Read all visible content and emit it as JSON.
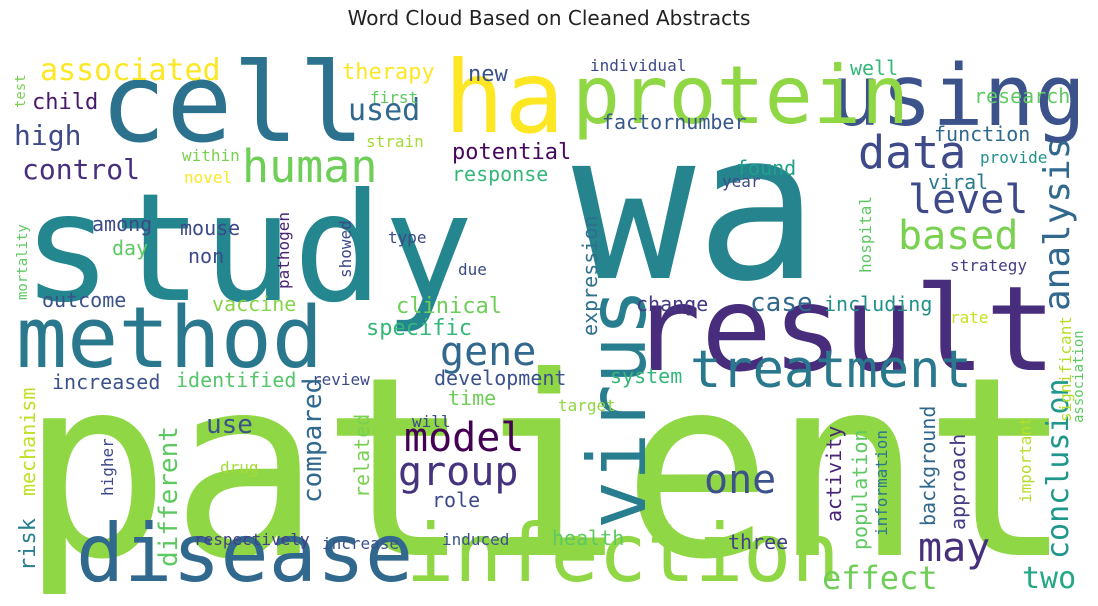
{
  "title": "Word Cloud Based on Cleaned Abstracts",
  "colors": {
    "background": "#ffffff",
    "palette": "viridis"
  },
  "words": [
    {
      "text": "patient",
      "color": "#8fd744"
    },
    {
      "text": "wa",
      "color": "#25848e"
    },
    {
      "text": "study",
      "color": "#24868e"
    },
    {
      "text": "result",
      "color": "#472d7b"
    },
    {
      "text": "cell",
      "color": "#2c728e"
    },
    {
      "text": "ha",
      "color": "#fde725"
    },
    {
      "text": "using",
      "color": "#3b528b"
    },
    {
      "text": "protein",
      "color": "#8fd744"
    },
    {
      "text": "method",
      "color": "#2a788e"
    },
    {
      "text": "infection",
      "color": "#8fd744"
    },
    {
      "text": "disease",
      "color": "#31688e"
    },
    {
      "text": "virus",
      "color": "#287d8e"
    },
    {
      "text": "treatment",
      "color": "#2a788e"
    },
    {
      "text": "human",
      "color": "#6ece58"
    },
    {
      "text": "data",
      "color": "#3e4a89"
    },
    {
      "text": "associated",
      "color": "#fde725"
    },
    {
      "text": "based",
      "color": "#7ad151"
    },
    {
      "text": "analysis",
      "color": "#31688e"
    },
    {
      "text": "level",
      "color": "#3e4989"
    },
    {
      "text": "model",
      "color": "#440154"
    },
    {
      "text": "group",
      "color": "#46337e"
    },
    {
      "text": "gene",
      "color": "#31688e"
    },
    {
      "text": "one",
      "color": "#3b528b"
    },
    {
      "text": "may",
      "color": "#46307e"
    },
    {
      "text": "conclusion",
      "color": "#1f988b"
    },
    {
      "text": "effect",
      "color": "#6ece58"
    },
    {
      "text": "two",
      "color": "#22a884"
    },
    {
      "text": "used",
      "color": "#31688e"
    },
    {
      "text": "control",
      "color": "#472f7d"
    },
    {
      "text": "high",
      "color": "#3e4a89"
    },
    {
      "text": "child",
      "color": "#48186a"
    },
    {
      "text": "new",
      "color": "#3b528b"
    },
    {
      "text": "therapy",
      "color": "#fde725"
    },
    {
      "text": "research",
      "color": "#5ec962"
    },
    {
      "text": "well",
      "color": "#35b779"
    },
    {
      "text": "function",
      "color": "#30698e"
    },
    {
      "text": "factornumber",
      "color": "#38588c"
    },
    {
      "text": "potential",
      "color": "#46085c"
    },
    {
      "text": "response",
      "color": "#35b779"
    },
    {
      "text": "found",
      "color": "#1f9e89"
    },
    {
      "text": "viral",
      "color": "#2a788e"
    },
    {
      "text": "case",
      "color": "#31688e"
    },
    {
      "text": "including",
      "color": "#21918c"
    },
    {
      "text": "change",
      "color": "#443983"
    },
    {
      "text": "clinical",
      "color": "#6ece58"
    },
    {
      "text": "specific",
      "color": "#35b779"
    },
    {
      "text": "vaccine",
      "color": "#86d549"
    },
    {
      "text": "outcome",
      "color": "#3b528b"
    },
    {
      "text": "mouse",
      "color": "#3e4989"
    },
    {
      "text": "among",
      "color": "#3e4989"
    },
    {
      "text": "day",
      "color": "#5ec962"
    },
    {
      "text": "non",
      "color": "#3e4989"
    },
    {
      "text": "increased",
      "color": "#3b528b"
    },
    {
      "text": "identified",
      "color": "#54c568"
    },
    {
      "text": "review",
      "color": "#3e4989"
    },
    {
      "text": "development",
      "color": "#3b528b"
    },
    {
      "text": "system",
      "color": "#35b779"
    },
    {
      "text": "time",
      "color": "#6ece58"
    },
    {
      "text": "expression",
      "color": "#2d708e"
    },
    {
      "text": "use",
      "color": "#3b528b"
    },
    {
      "text": "compared",
      "color": "#31688e"
    },
    {
      "text": "related",
      "color": "#7ad151"
    },
    {
      "text": "role",
      "color": "#3e4989"
    },
    {
      "text": "different",
      "color": "#5ec962"
    },
    {
      "text": "risk",
      "color": "#287d8e"
    },
    {
      "text": "mechanism",
      "color": "#c2df23"
    },
    {
      "text": "respectively",
      "color": "#424086"
    },
    {
      "text": "increase",
      "color": "#3b528b"
    },
    {
      "text": "induced",
      "color": "#3b528b"
    },
    {
      "text": "health",
      "color": "#5ec962"
    },
    {
      "text": "three",
      "color": "#424086"
    },
    {
      "text": "activity",
      "color": "#482576"
    },
    {
      "text": "population",
      "color": "#5ec962"
    },
    {
      "text": "background",
      "color": "#31688e"
    },
    {
      "text": "approach",
      "color": "#433e85"
    },
    {
      "text": "information",
      "color": "#2a788e"
    },
    {
      "text": "important",
      "color": "#b5de2b"
    },
    {
      "text": "significant",
      "color": "#b5de2b"
    },
    {
      "text": "association",
      "color": "#5ec962"
    },
    {
      "text": "rate",
      "color": "#c8e020"
    },
    {
      "text": "strategy",
      "color": "#433e85"
    },
    {
      "text": "hospital",
      "color": "#5ec962"
    },
    {
      "text": "year",
      "color": "#3e4989"
    },
    {
      "text": "provide",
      "color": "#21918c"
    },
    {
      "text": "individual",
      "color": "#3e4989"
    },
    {
      "text": "first",
      "color": "#5ec962"
    },
    {
      "text": "strain",
      "color": "#a5db36"
    },
    {
      "text": "within",
      "color": "#7ad151"
    },
    {
      "text": "novel",
      "color": "#fde725"
    },
    {
      "text": "pathogen",
      "color": "#482475"
    },
    {
      "text": "showed",
      "color": "#3e4989"
    },
    {
      "text": "type",
      "color": "#3e4989"
    },
    {
      "text": "due",
      "color": "#3e4989"
    },
    {
      "text": "will",
      "color": "#3e4989"
    },
    {
      "text": "target",
      "color": "#8fd744"
    },
    {
      "text": "drug",
      "color": "#a5db36"
    },
    {
      "text": "higher",
      "color": "#3e4989"
    },
    {
      "text": "test",
      "color": "#7ad151"
    },
    {
      "text": "mortality",
      "color": "#5ec962"
    }
  ]
}
